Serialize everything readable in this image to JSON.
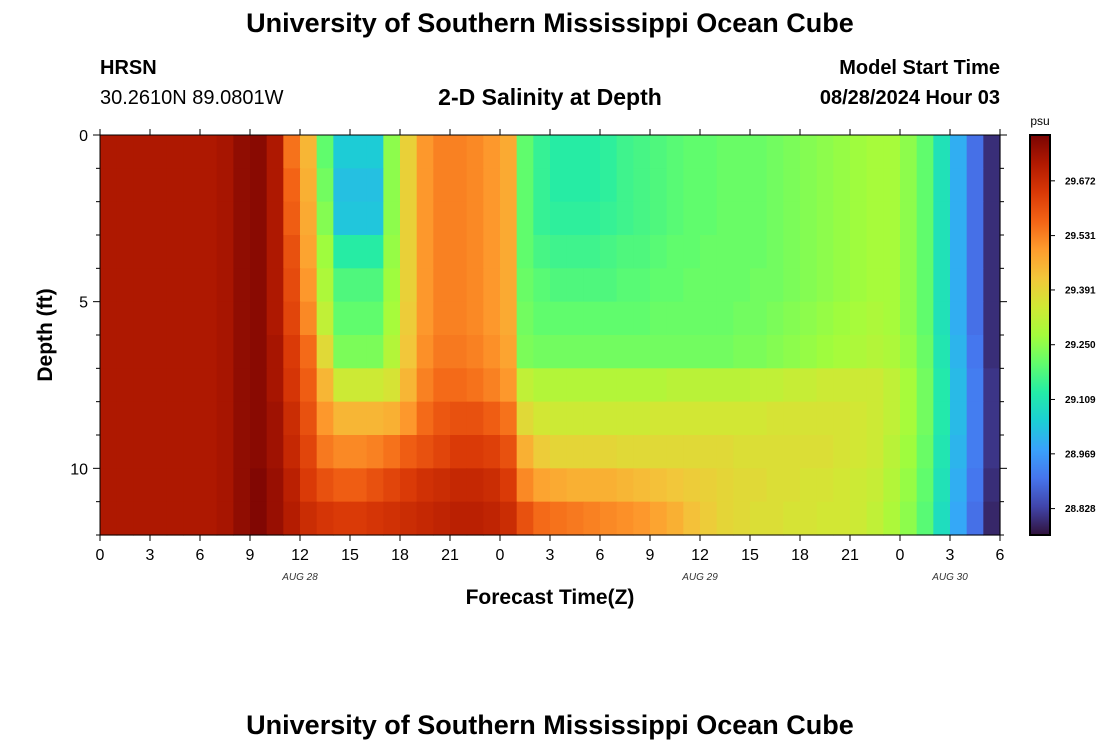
{
  "header": {
    "title": "University of Southern Mississippi Ocean Cube",
    "station": "HRSN",
    "coords": "30.2610N  89.0801W",
    "subtitle": "2-D Salinity at Depth",
    "start_label": "Model Start Time",
    "start_value": "08/28/2024 Hour 03"
  },
  "footer": {
    "title": "University of Southern Mississippi Ocean Cube"
  },
  "chart_data": {
    "type": "heatmap",
    "title": "2-D Salinity at Depth",
    "xlabel": "Forecast Time(Z)",
    "ylabel": "Depth (ft)",
    "x_unit": "hours since 08/28 00Z",
    "xlim": [
      0,
      54
    ],
    "ylim": [
      0,
      12
    ],
    "x_ticks": [
      0,
      3,
      6,
      9,
      12,
      15,
      18,
      21,
      24,
      27,
      30,
      33,
      36,
      39,
      42,
      45,
      48,
      51,
      54
    ],
    "x_tick_labels": [
      "0",
      "3",
      "6",
      "9",
      "12",
      "15",
      "18",
      "21",
      "0",
      "3",
      "6",
      "9",
      "12",
      "15",
      "18",
      "21",
      "0",
      "3",
      "6"
    ],
    "date_labels": [
      {
        "x": 12,
        "text": "AUG 28"
      },
      {
        "x": 36,
        "text": "AUG 29"
      },
      {
        "x": 51,
        "text": "AUG 30"
      }
    ],
    "y_ticks": [
      0,
      5,
      10
    ],
    "y_tick_labels": [
      "0",
      "5",
      "10"
    ],
    "colorbar": {
      "unit": "psu",
      "min": 28.76,
      "max": 29.79,
      "ticks": [
        29.672,
        29.531,
        29.391,
        29.25,
        29.109,
        28.969,
        28.828
      ],
      "tick_labels": [
        "29.672",
        "29.531",
        "29.391",
        "29.250",
        "29.109",
        "28.969",
        "28.828"
      ],
      "colors": [
        "#30123b",
        "#4145ab",
        "#4675ed",
        "#39a2fc",
        "#1bcfd4",
        "#24eca6",
        "#61fc6c",
        "#a4fc3b",
        "#d1e834",
        "#f3c63a",
        "#fe9b2d",
        "#f36315",
        "#d93806",
        "#b11901",
        "#7a0403"
      ]
    },
    "depth_rows": [
      0.5,
      1.5,
      2.5,
      3.5,
      4.5,
      5.5,
      6.5,
      7.5,
      8.5,
      9.5,
      10.5,
      11.5
    ],
    "time_columns": [
      0,
      1,
      2,
      3,
      4,
      5,
      6,
      7,
      8,
      9,
      10,
      11,
      12,
      13,
      14,
      15,
      16,
      17,
      18,
      19,
      20,
      21,
      22,
      23,
      24,
      25,
      26,
      27,
      28,
      29,
      30,
      31,
      32,
      33,
      34,
      35,
      36,
      37,
      38,
      39,
      40,
      41,
      42,
      43,
      44,
      45,
      46,
      47,
      48,
      49,
      50,
      51,
      52,
      53
    ],
    "salinity_psu": [
      [
        29.72,
        29.72,
        29.72,
        29.72,
        29.72,
        29.72,
        29.72,
        29.73,
        29.76,
        29.77,
        29.72,
        29.55,
        29.45,
        29.2,
        29.05,
        29.05,
        29.05,
        29.25,
        29.4,
        29.5,
        29.53,
        29.53,
        29.52,
        29.5,
        29.47,
        29.2,
        29.15,
        29.13,
        29.13,
        29.13,
        29.14,
        29.16,
        29.17,
        29.18,
        29.19,
        29.2,
        29.2,
        29.21,
        29.21,
        29.21,
        29.22,
        29.23,
        29.24,
        29.25,
        29.26,
        29.27,
        29.28,
        29.28,
        29.25,
        29.2,
        29.1,
        29.0,
        28.9,
        28.8
      ],
      [
        29.72,
        29.72,
        29.72,
        29.72,
        29.72,
        29.72,
        29.72,
        29.73,
        29.76,
        29.77,
        29.72,
        29.57,
        29.46,
        29.22,
        29.03,
        29.03,
        29.03,
        29.25,
        29.4,
        29.5,
        29.53,
        29.53,
        29.52,
        29.5,
        29.47,
        29.2,
        29.15,
        29.13,
        29.13,
        29.13,
        29.14,
        29.16,
        29.17,
        29.18,
        29.19,
        29.2,
        29.2,
        29.21,
        29.21,
        29.21,
        29.22,
        29.23,
        29.24,
        29.25,
        29.26,
        29.27,
        29.28,
        29.28,
        29.25,
        29.2,
        29.1,
        29.0,
        28.9,
        28.8
      ],
      [
        29.72,
        29.72,
        29.72,
        29.72,
        29.72,
        29.72,
        29.72,
        29.73,
        29.76,
        29.77,
        29.72,
        29.58,
        29.47,
        29.24,
        29.04,
        29.04,
        29.04,
        29.25,
        29.4,
        29.5,
        29.53,
        29.53,
        29.52,
        29.5,
        29.47,
        29.2,
        29.15,
        29.14,
        29.14,
        29.14,
        29.15,
        29.16,
        29.17,
        29.18,
        29.19,
        29.2,
        29.2,
        29.21,
        29.21,
        29.21,
        29.22,
        29.23,
        29.24,
        29.25,
        29.26,
        29.27,
        29.28,
        29.28,
        29.25,
        29.2,
        29.1,
        29.0,
        28.9,
        28.8
      ],
      [
        29.72,
        29.72,
        29.72,
        29.72,
        29.72,
        29.72,
        29.72,
        29.73,
        29.76,
        29.77,
        29.72,
        29.6,
        29.48,
        29.27,
        29.13,
        29.13,
        29.13,
        29.26,
        29.4,
        29.5,
        29.53,
        29.53,
        29.52,
        29.5,
        29.47,
        29.2,
        29.17,
        29.16,
        29.16,
        29.16,
        29.17,
        29.18,
        29.18,
        29.19,
        29.2,
        29.2,
        29.21,
        29.21,
        29.21,
        29.21,
        29.22,
        29.23,
        29.24,
        29.25,
        29.26,
        29.27,
        29.28,
        29.28,
        29.25,
        29.2,
        29.1,
        29.0,
        28.9,
        28.8
      ],
      [
        29.72,
        29.72,
        29.72,
        29.72,
        29.72,
        29.72,
        29.72,
        29.73,
        29.76,
        29.77,
        29.72,
        29.61,
        29.5,
        29.29,
        29.18,
        29.18,
        29.18,
        29.27,
        29.4,
        29.5,
        29.53,
        29.53,
        29.52,
        29.5,
        29.47,
        29.21,
        29.19,
        29.18,
        29.18,
        29.18,
        29.18,
        29.19,
        29.19,
        29.2,
        29.2,
        29.21,
        29.21,
        29.21,
        29.21,
        29.22,
        29.22,
        29.23,
        29.24,
        29.25,
        29.26,
        29.27,
        29.28,
        29.28,
        29.25,
        29.2,
        29.1,
        29.0,
        28.9,
        28.8
      ],
      [
        29.72,
        29.72,
        29.72,
        29.72,
        29.72,
        29.72,
        29.72,
        29.73,
        29.76,
        29.77,
        29.72,
        29.62,
        29.52,
        29.32,
        29.2,
        29.2,
        29.2,
        29.28,
        29.41,
        29.5,
        29.53,
        29.53,
        29.52,
        29.5,
        29.47,
        29.22,
        29.2,
        29.2,
        29.2,
        29.2,
        29.2,
        29.2,
        29.2,
        29.21,
        29.21,
        29.21,
        29.21,
        29.21,
        29.22,
        29.22,
        29.23,
        29.24,
        29.25,
        29.26,
        29.27,
        29.28,
        29.29,
        29.28,
        29.25,
        29.2,
        29.1,
        29.0,
        28.9,
        28.8
      ],
      [
        29.72,
        29.72,
        29.72,
        29.72,
        29.72,
        29.72,
        29.72,
        29.73,
        29.76,
        29.77,
        29.73,
        29.64,
        29.56,
        29.38,
        29.23,
        29.23,
        29.23,
        29.3,
        29.42,
        29.51,
        29.54,
        29.54,
        29.53,
        29.51,
        29.48,
        29.23,
        29.22,
        29.22,
        29.22,
        29.22,
        29.22,
        29.22,
        29.22,
        29.22,
        29.22,
        29.22,
        29.22,
        29.22,
        29.23,
        29.23,
        29.24,
        29.25,
        29.26,
        29.27,
        29.28,
        29.29,
        29.3,
        29.29,
        29.26,
        29.21,
        29.11,
        29.01,
        28.91,
        28.8
      ],
      [
        29.72,
        29.72,
        29.72,
        29.72,
        29.72,
        29.72,
        29.72,
        29.73,
        29.76,
        29.77,
        29.73,
        29.65,
        29.58,
        29.45,
        29.34,
        29.34,
        29.34,
        29.36,
        29.45,
        29.53,
        29.56,
        29.56,
        29.55,
        29.53,
        29.5,
        29.32,
        29.3,
        29.3,
        29.3,
        29.3,
        29.3,
        29.3,
        29.3,
        29.3,
        29.31,
        29.31,
        29.31,
        29.31,
        29.31,
        29.32,
        29.32,
        29.33,
        29.33,
        29.34,
        29.34,
        29.34,
        29.34,
        29.32,
        29.28,
        29.22,
        29.12,
        29.02,
        28.92,
        28.81
      ],
      [
        29.72,
        29.72,
        29.72,
        29.72,
        29.72,
        29.72,
        29.72,
        29.73,
        29.76,
        29.77,
        29.74,
        29.67,
        29.6,
        29.5,
        29.45,
        29.45,
        29.45,
        29.46,
        29.5,
        29.56,
        29.59,
        29.6,
        29.6,
        29.58,
        29.55,
        29.38,
        29.35,
        29.34,
        29.34,
        29.34,
        29.34,
        29.34,
        29.34,
        29.35,
        29.35,
        29.35,
        29.35,
        29.35,
        29.35,
        29.35,
        29.36,
        29.36,
        29.36,
        29.36,
        29.36,
        29.35,
        29.34,
        29.32,
        29.28,
        29.22,
        29.12,
        29.02,
        28.92,
        28.81
      ],
      [
        29.72,
        29.72,
        29.72,
        29.72,
        29.72,
        29.72,
        29.72,
        29.73,
        29.76,
        29.77,
        29.74,
        29.68,
        29.62,
        29.54,
        29.52,
        29.52,
        29.53,
        29.55,
        29.58,
        29.6,
        29.62,
        29.64,
        29.64,
        29.63,
        29.6,
        29.46,
        29.41,
        29.39,
        29.39,
        29.39,
        29.39,
        29.38,
        29.38,
        29.38,
        29.38,
        29.38,
        29.38,
        29.38,
        29.37,
        29.37,
        29.37,
        29.37,
        29.37,
        29.37,
        29.36,
        29.35,
        29.34,
        29.31,
        29.27,
        29.21,
        29.11,
        29.01,
        28.92,
        28.81
      ],
      [
        29.72,
        29.72,
        29.72,
        29.72,
        29.72,
        29.72,
        29.72,
        29.73,
        29.76,
        29.78,
        29.75,
        29.7,
        29.64,
        29.6,
        29.58,
        29.58,
        29.6,
        29.62,
        29.64,
        29.66,
        29.67,
        29.68,
        29.68,
        29.67,
        29.64,
        29.52,
        29.48,
        29.47,
        29.46,
        29.46,
        29.46,
        29.45,
        29.44,
        29.43,
        29.42,
        29.41,
        29.4,
        29.39,
        29.38,
        29.38,
        29.37,
        29.37,
        29.36,
        29.36,
        29.35,
        29.34,
        29.33,
        29.3,
        29.26,
        29.2,
        29.1,
        29.0,
        28.91,
        28.8
      ],
      [
        29.72,
        29.72,
        29.72,
        29.72,
        29.72,
        29.72,
        29.72,
        29.73,
        29.76,
        29.78,
        29.75,
        29.71,
        29.67,
        29.65,
        29.64,
        29.64,
        29.65,
        29.66,
        29.67,
        29.68,
        29.69,
        29.7,
        29.7,
        29.69,
        29.67,
        29.6,
        29.56,
        29.55,
        29.54,
        29.53,
        29.52,
        29.51,
        29.5,
        29.48,
        29.46,
        29.43,
        29.41,
        29.39,
        29.38,
        29.37,
        29.37,
        29.36,
        29.36,
        29.35,
        29.35,
        29.34,
        29.32,
        29.29,
        29.25,
        29.19,
        29.09,
        28.99,
        28.9,
        28.79
      ]
    ]
  }
}
